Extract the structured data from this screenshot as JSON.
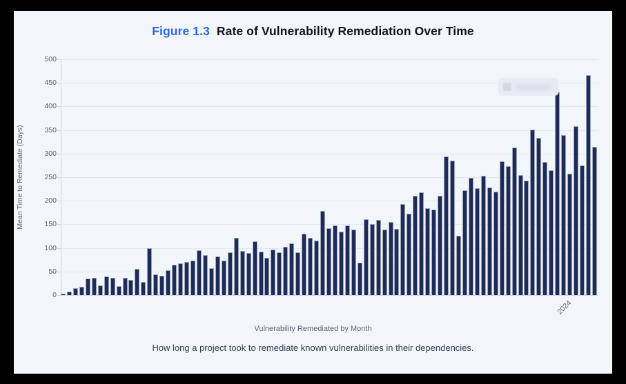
{
  "header": {
    "figure_label": "Figure 1.3",
    "title": "Rate of Vulnerability Remediation Over Time"
  },
  "chart_data": {
    "type": "bar",
    "title": "Figure 1.3 Rate of Vulnerability Remediation Over Time",
    "xlabel": "Vulnerability Remediated by Month",
    "ylabel": "Mean Time to Remediate (Days)",
    "ylim": [
      0,
      500
    ],
    "yticks": [
      0,
      50,
      100,
      150,
      200,
      250,
      300,
      350,
      400,
      450,
      500
    ],
    "grid": true,
    "x_visible_tick": "2024",
    "x_visible_tick_position_fraction": 0.94,
    "n_bars": 87,
    "values": [
      3,
      8,
      14,
      17,
      35,
      37,
      21,
      39,
      37,
      19,
      37,
      32,
      56,
      28,
      100,
      44,
      41,
      53,
      64,
      67,
      70,
      73,
      95,
      85,
      57,
      82,
      73,
      90,
      121,
      93,
      89,
      114,
      92,
      79,
      97,
      91,
      103,
      110,
      90,
      130,
      122,
      116,
      178,
      142,
      147,
      135,
      148,
      139,
      69,
      161,
      150,
      159,
      139,
      155,
      140,
      193,
      172,
      210,
      218,
      184,
      181,
      210,
      294,
      285,
      126,
      222,
      249,
      226,
      253,
      228,
      220,
      283,
      274,
      313,
      254,
      243,
      351,
      333,
      282,
      264,
      431,
      339,
      257,
      358,
      275,
      466,
      314
    ],
    "legend_redacted": true
  },
  "caption": "How long a project took to remediate known vulnerabilities in their dependencies.",
  "colors": {
    "frame": "#000000",
    "page_bg": "#f2f6fa",
    "accent_blue": "#2a66f5",
    "title_dark": "#10131c",
    "bar_navy": "#1e2a57",
    "bar_edge": "#9aa3b7",
    "grid": "#e3e8f0",
    "grid_dark": "#ccd4e1",
    "axis_text": "#5d6673",
    "caption": "#323b4d",
    "legend_bg": "#e8ebf1",
    "legend_swatch": "#d4d8e2",
    "legend_smear": "#dde1e9"
  }
}
